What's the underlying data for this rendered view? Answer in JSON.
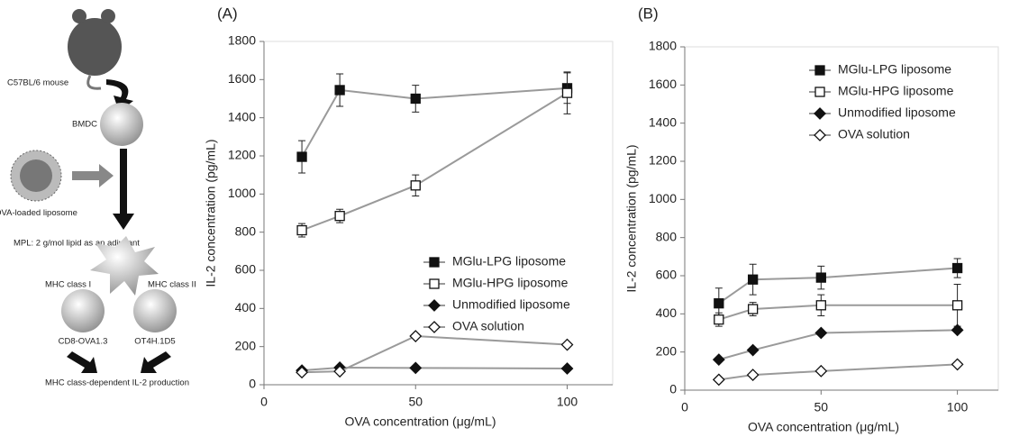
{
  "diagram": {
    "mouse": "C57BL/6 mouse",
    "bmdc": "BMDC",
    "liposome": "OVA-loaded liposome",
    "mpl": "MPL: 2 g/mol lipid as an adjuvant",
    "mhc1": "MHC class I",
    "mhc2": "MHC class II",
    "cell1": "CD8-OVA1.3",
    "cell2": "OT4H.1D5",
    "result": "MHC class-dependent IL-2 production"
  },
  "chart_data": [
    {
      "type": "line",
      "label": "(A)",
      "xlabel": "OVA concentration (μg/mL)",
      "ylabel": "IL-2 concentration (pg/mL)",
      "xlim": [
        0,
        115
      ],
      "xticks": [
        0,
        50,
        100
      ],
      "ylim": [
        0,
        1800
      ],
      "yticks": [
        0,
        200,
        400,
        600,
        800,
        1000,
        1200,
        1400,
        1600,
        1800
      ],
      "legend": "lower right",
      "line_color": "#9a9a9a",
      "x": [
        12.5,
        25,
        50,
        100
      ],
      "series": [
        {
          "name": "MGlu-LPG liposome",
          "marker": "square",
          "filled": true,
          "color": "#111111",
          "values": [
            1195,
            1545,
            1500,
            1555
          ],
          "errors": [
            85,
            85,
            70,
            80
          ]
        },
        {
          "name": "MGlu-HPG liposome",
          "marker": "square",
          "filled": false,
          "color": "#111111",
          "values": [
            810,
            885,
            1045,
            1530
          ],
          "errors": [
            35,
            35,
            55,
            110
          ]
        },
        {
          "name": "Unmodified liposome",
          "marker": "diamond",
          "filled": true,
          "color": "#111111",
          "values": [
            75,
            90,
            88,
            85
          ]
        },
        {
          "name": "OVA solution",
          "marker": "diamond",
          "filled": false,
          "color": "#111111",
          "values": [
            65,
            70,
            255,
            210
          ]
        }
      ]
    },
    {
      "type": "line",
      "label": "(B)",
      "xlabel": "OVA concentration (μg/mL)",
      "ylabel": "IL-2 concentration (pg/mL)",
      "xlim": [
        0,
        115
      ],
      "xticks": [
        0,
        50,
        100
      ],
      "ylim": [
        0,
        1800
      ],
      "yticks": [
        0,
        200,
        400,
        600,
        800,
        1000,
        1200,
        1400,
        1600,
        1800
      ],
      "legend": "upper right",
      "line_color": "#9a9a9a",
      "x": [
        12.5,
        25,
        50,
        100
      ],
      "series": [
        {
          "name": "MGlu-LPG liposome",
          "marker": "square",
          "filled": true,
          "color": "#111111",
          "values": [
            455,
            580,
            590,
            640
          ],
          "errors": [
            80,
            80,
            60,
            50
          ]
        },
        {
          "name": "MGlu-HPG liposome",
          "marker": "square",
          "filled": false,
          "color": "#111111",
          "values": [
            370,
            425,
            445,
            445
          ],
          "errors": [
            35,
            35,
            55,
            110
          ]
        },
        {
          "name": "Unmodified liposome",
          "marker": "diamond",
          "filled": true,
          "color": "#111111",
          "values": [
            160,
            210,
            300,
            315
          ]
        },
        {
          "name": "OVA solution",
          "marker": "diamond",
          "filled": false,
          "color": "#111111",
          "values": [
            55,
            80,
            100,
            135
          ]
        }
      ]
    }
  ]
}
